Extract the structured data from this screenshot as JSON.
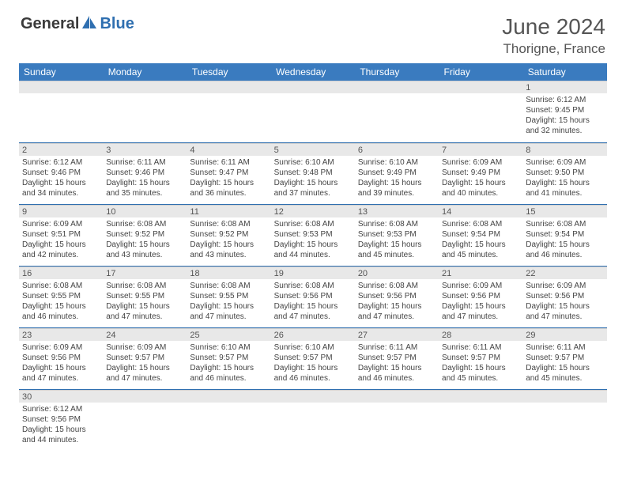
{
  "logo": {
    "text1": "General",
    "text2": "Blue"
  },
  "title": "June 2024",
  "location": "Thorigne, France",
  "colors": {
    "header_bg": "#3a7bbf",
    "header_text": "#ffffff",
    "daynum_bg": "#e8e8e8",
    "border": "#2f6fb0",
    "text": "#444444",
    "title_text": "#555555",
    "logo_blue": "#2f6fb0",
    "logo_dark": "#3a3a3a"
  },
  "weekdays": [
    "Sunday",
    "Monday",
    "Tuesday",
    "Wednesday",
    "Thursday",
    "Friday",
    "Saturday"
  ],
  "weeks": [
    [
      null,
      null,
      null,
      null,
      null,
      null,
      {
        "n": "1",
        "sr": "6:12 AM",
        "ss": "9:45 PM",
        "dl": "15 hours and 32 minutes."
      }
    ],
    [
      {
        "n": "2",
        "sr": "6:12 AM",
        "ss": "9:46 PM",
        "dl": "15 hours and 34 minutes."
      },
      {
        "n": "3",
        "sr": "6:11 AM",
        "ss": "9:46 PM",
        "dl": "15 hours and 35 minutes."
      },
      {
        "n": "4",
        "sr": "6:11 AM",
        "ss": "9:47 PM",
        "dl": "15 hours and 36 minutes."
      },
      {
        "n": "5",
        "sr": "6:10 AM",
        "ss": "9:48 PM",
        "dl": "15 hours and 37 minutes."
      },
      {
        "n": "6",
        "sr": "6:10 AM",
        "ss": "9:49 PM",
        "dl": "15 hours and 39 minutes."
      },
      {
        "n": "7",
        "sr": "6:09 AM",
        "ss": "9:49 PM",
        "dl": "15 hours and 40 minutes."
      },
      {
        "n": "8",
        "sr": "6:09 AM",
        "ss": "9:50 PM",
        "dl": "15 hours and 41 minutes."
      }
    ],
    [
      {
        "n": "9",
        "sr": "6:09 AM",
        "ss": "9:51 PM",
        "dl": "15 hours and 42 minutes."
      },
      {
        "n": "10",
        "sr": "6:08 AM",
        "ss": "9:52 PM",
        "dl": "15 hours and 43 minutes."
      },
      {
        "n": "11",
        "sr": "6:08 AM",
        "ss": "9:52 PM",
        "dl": "15 hours and 43 minutes."
      },
      {
        "n": "12",
        "sr": "6:08 AM",
        "ss": "9:53 PM",
        "dl": "15 hours and 44 minutes."
      },
      {
        "n": "13",
        "sr": "6:08 AM",
        "ss": "9:53 PM",
        "dl": "15 hours and 45 minutes."
      },
      {
        "n": "14",
        "sr": "6:08 AM",
        "ss": "9:54 PM",
        "dl": "15 hours and 45 minutes."
      },
      {
        "n": "15",
        "sr": "6:08 AM",
        "ss": "9:54 PM",
        "dl": "15 hours and 46 minutes."
      }
    ],
    [
      {
        "n": "16",
        "sr": "6:08 AM",
        "ss": "9:55 PM",
        "dl": "15 hours and 46 minutes."
      },
      {
        "n": "17",
        "sr": "6:08 AM",
        "ss": "9:55 PM",
        "dl": "15 hours and 47 minutes."
      },
      {
        "n": "18",
        "sr": "6:08 AM",
        "ss": "9:55 PM",
        "dl": "15 hours and 47 minutes."
      },
      {
        "n": "19",
        "sr": "6:08 AM",
        "ss": "9:56 PM",
        "dl": "15 hours and 47 minutes."
      },
      {
        "n": "20",
        "sr": "6:08 AM",
        "ss": "9:56 PM",
        "dl": "15 hours and 47 minutes."
      },
      {
        "n": "21",
        "sr": "6:09 AM",
        "ss": "9:56 PM",
        "dl": "15 hours and 47 minutes."
      },
      {
        "n": "22",
        "sr": "6:09 AM",
        "ss": "9:56 PM",
        "dl": "15 hours and 47 minutes."
      }
    ],
    [
      {
        "n": "23",
        "sr": "6:09 AM",
        "ss": "9:56 PM",
        "dl": "15 hours and 47 minutes."
      },
      {
        "n": "24",
        "sr": "6:09 AM",
        "ss": "9:57 PM",
        "dl": "15 hours and 47 minutes."
      },
      {
        "n": "25",
        "sr": "6:10 AM",
        "ss": "9:57 PM",
        "dl": "15 hours and 46 minutes."
      },
      {
        "n": "26",
        "sr": "6:10 AM",
        "ss": "9:57 PM",
        "dl": "15 hours and 46 minutes."
      },
      {
        "n": "27",
        "sr": "6:11 AM",
        "ss": "9:57 PM",
        "dl": "15 hours and 46 minutes."
      },
      {
        "n": "28",
        "sr": "6:11 AM",
        "ss": "9:57 PM",
        "dl": "15 hours and 45 minutes."
      },
      {
        "n": "29",
        "sr": "6:11 AM",
        "ss": "9:57 PM",
        "dl": "15 hours and 45 minutes."
      }
    ],
    [
      {
        "n": "30",
        "sr": "6:12 AM",
        "ss": "9:56 PM",
        "dl": "15 hours and 44 minutes."
      },
      null,
      null,
      null,
      null,
      null,
      null
    ]
  ],
  "labels": {
    "sunrise": "Sunrise: ",
    "sunset": "Sunset: ",
    "daylight": "Daylight: "
  }
}
